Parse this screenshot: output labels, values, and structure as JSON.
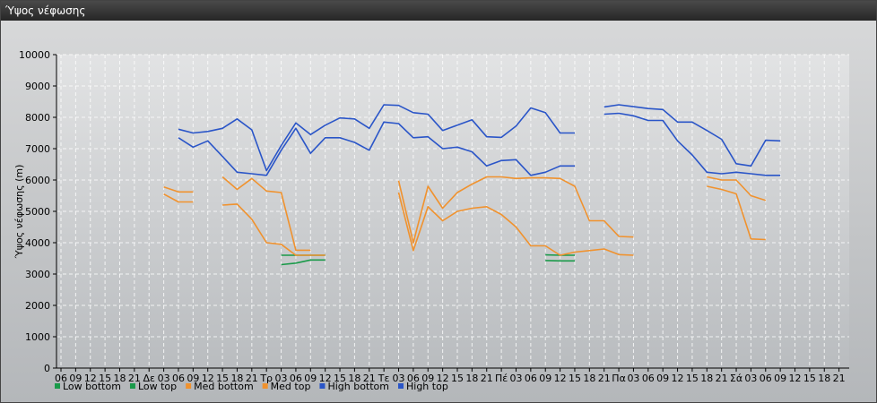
{
  "window": {
    "title": "Ύψος νέφωσης"
  },
  "chart_data": {
    "type": "line",
    "ylabel": "Ύψος νέφωσης (m)",
    "ylim": [
      0,
      10000
    ],
    "y_ticks": [
      0,
      1000,
      2000,
      3000,
      4000,
      5000,
      6000,
      7000,
      8000,
      9000,
      10000
    ],
    "x_ticks": [
      "06",
      "09",
      "12",
      "15",
      "18",
      "21",
      "Δε",
      "03",
      "06",
      "09",
      "12",
      "15",
      "18",
      "21",
      "Τρ",
      "03",
      "06",
      "09",
      "12",
      "15",
      "18",
      "21",
      "Τε",
      "03",
      "06",
      "09",
      "12",
      "15",
      "18",
      "21",
      "Πέ",
      "03",
      "06",
      "09",
      "12",
      "15",
      "18",
      "21",
      "Πα",
      "03",
      "06",
      "09",
      "12",
      "15",
      "18",
      "21",
      "Σά",
      "03",
      "06",
      "09",
      "12",
      "15",
      "18",
      "21"
    ],
    "grid": true,
    "legend_position": "bottom-left",
    "series": [
      {
        "name": "Low bottom",
        "color": "#1a9a4a",
        "segments": [
          [
            [
              15.0,
              3300
            ],
            [
              16.0,
              3350
            ],
            [
              17.0,
              3450
            ],
            [
              18.0,
              3450
            ]
          ],
          [
            [
              33.0,
              3430
            ],
            [
              34.0,
              3420
            ],
            [
              35.0,
              3420
            ]
          ]
        ]
      },
      {
        "name": "Low top",
        "color": "#1a9a4a",
        "segments": [
          [
            [
              15.0,
              3600
            ],
            [
              16.0,
              3600
            ],
            [
              17.0,
              3600
            ],
            [
              18.0,
              3600
            ]
          ],
          [
            [
              33.0,
              3610
            ],
            [
              34.0,
              3600
            ],
            [
              35.0,
              3600
            ]
          ]
        ]
      },
      {
        "name": "Med bottom",
        "color": "#f0922e",
        "segments": [
          [
            [
              7.0,
              5550
            ],
            [
              8.0,
              5300
            ],
            [
              9.0,
              5300
            ]
          ],
          [
            [
              11.0,
              5200
            ],
            [
              12.0,
              5230
            ],
            [
              13.0,
              4750
            ],
            [
              14.0,
              4000
            ],
            [
              15.0,
              3950
            ],
            [
              16.0,
              3600
            ],
            [
              17.0,
              3600
            ],
            [
              18.0,
              3600
            ]
          ],
          [
            [
              23.0,
              5600
            ],
            [
              24.0,
              3750
            ],
            [
              25.0,
              5150
            ],
            [
              26.0,
              4700
            ],
            [
              27.0,
              5000
            ],
            [
              28.0,
              5100
            ],
            [
              29.0,
              5150
            ],
            [
              30.0,
              4900
            ],
            [
              31.0,
              4500
            ],
            [
              32.0,
              3900
            ],
            [
              33.0,
              3900
            ],
            [
              34.0,
              3600
            ],
            [
              35.0,
              3700
            ],
            [
              36.0,
              3750
            ],
            [
              37.0,
              3800
            ],
            [
              38.0,
              3620
            ],
            [
              39.0,
              3600
            ]
          ],
          [
            [
              44.0,
              5800
            ],
            [
              45.0,
              5700
            ],
            [
              46.0,
              5560
            ],
            [
              47.0,
              4120
            ],
            [
              48.0,
              4100
            ]
          ]
        ]
      },
      {
        "name": "Med top",
        "color": "#f0922e",
        "segments": [
          [
            [
              7.0,
              5780
            ],
            [
              8.0,
              5620
            ],
            [
              9.0,
              5620
            ]
          ],
          [
            [
              11.0,
              6100
            ],
            [
              12.0,
              5700
            ],
            [
              13.0,
              6050
            ],
            [
              14.0,
              5650
            ],
            [
              15.0,
              5600
            ],
            [
              16.0,
              3760
            ],
            [
              17.0,
              3760
            ]
          ],
          [
            [
              23.0,
              5980
            ],
            [
              24.0,
              4000
            ],
            [
              25.0,
              5800
            ],
            [
              26.0,
              5100
            ],
            [
              27.0,
              5600
            ],
            [
              28.0,
              5870
            ],
            [
              29.0,
              6100
            ],
            [
              30.0,
              6100
            ],
            [
              31.0,
              6050
            ],
            [
              32.0,
              6070
            ],
            [
              33.0,
              6070
            ],
            [
              34.0,
              6050
            ],
            [
              35.0,
              5800
            ],
            [
              36.0,
              4700
            ],
            [
              37.0,
              4700
            ],
            [
              38.0,
              4200
            ],
            [
              39.0,
              4180
            ]
          ],
          [
            [
              44.0,
              6100
            ],
            [
              45.0,
              6000
            ],
            [
              46.0,
              6000
            ],
            [
              47.0,
              5500
            ],
            [
              48.0,
              5350
            ]
          ]
        ]
      },
      {
        "name": "High bottom",
        "color": "#2a55c8",
        "segments": [
          [
            [
              8.0,
              7350
            ],
            [
              9.0,
              7050
            ],
            [
              10.0,
              7250
            ],
            [
              11.0,
              6750
            ],
            [
              12.0,
              6250
            ],
            [
              13.0,
              6200
            ],
            [
              14.0,
              6150
            ],
            [
              15.0,
              6950
            ],
            [
              16.0,
              7650
            ],
            [
              17.0,
              6850
            ],
            [
              18.0,
              7350
            ],
            [
              19.0,
              7350
            ],
            [
              20.0,
              7200
            ],
            [
              21.0,
              6950
            ],
            [
              22.0,
              7850
            ],
            [
              23.0,
              7800
            ],
            [
              24.0,
              7350
            ],
            [
              25.0,
              7380
            ],
            [
              26.0,
              7000
            ],
            [
              27.0,
              7050
            ],
            [
              28.0,
              6900
            ],
            [
              29.0,
              6450
            ],
            [
              30.0,
              6620
            ],
            [
              31.0,
              6650
            ],
            [
              32.0,
              6150
            ],
            [
              33.0,
              6250
            ],
            [
              34.0,
              6450
            ],
            [
              35.0,
              6450
            ]
          ],
          [
            [
              37.0,
              8100
            ],
            [
              38.0,
              8130
            ],
            [
              39.0,
              8050
            ],
            [
              40.0,
              7900
            ],
            [
              41.0,
              7900
            ],
            [
              42.0,
              7250
            ],
            [
              43.0,
              6800
            ],
            [
              44.0,
              6250
            ],
            [
              45.0,
              6200
            ],
            [
              46.0,
              6250
            ],
            [
              47.0,
              6200
            ],
            [
              48.0,
              6150
            ],
            [
              49.0,
              6150
            ]
          ]
        ]
      },
      {
        "name": "High top",
        "color": "#2a55c8",
        "segments": [
          [
            [
              8.0,
              7620
            ],
            [
              9.0,
              7500
            ],
            [
              10.0,
              7550
            ],
            [
              11.0,
              7650
            ],
            [
              12.0,
              7950
            ],
            [
              13.0,
              7600
            ],
            [
              14.0,
              6300
            ],
            [
              15.0,
              7100
            ],
            [
              16.0,
              7820
            ],
            [
              17.0,
              7450
            ],
            [
              18.0,
              7750
            ],
            [
              19.0,
              7980
            ],
            [
              20.0,
              7950
            ],
            [
              21.0,
              7650
            ],
            [
              22.0,
              8400
            ],
            [
              23.0,
              8380
            ],
            [
              24.0,
              8150
            ],
            [
              25.0,
              8100
            ],
            [
              26.0,
              7580
            ],
            [
              27.0,
              7750
            ],
            [
              28.0,
              7920
            ],
            [
              29.0,
              7380
            ],
            [
              30.0,
              7360
            ],
            [
              31.0,
              7720
            ],
            [
              32.0,
              8300
            ],
            [
              33.0,
              8150
            ],
            [
              34.0,
              7500
            ],
            [
              35.0,
              7500
            ]
          ],
          [
            [
              37.0,
              8330
            ],
            [
              38.0,
              8400
            ],
            [
              39.0,
              8340
            ],
            [
              40.0,
              8280
            ],
            [
              41.0,
              8250
            ],
            [
              42.0,
              7850
            ],
            [
              43.0,
              7850
            ],
            [
              44.0,
              7580
            ],
            [
              45.0,
              7300
            ],
            [
              46.0,
              6520
            ],
            [
              47.0,
              6450
            ],
            [
              48.0,
              7270
            ],
            [
              49.0,
              7250
            ]
          ]
        ]
      }
    ]
  }
}
